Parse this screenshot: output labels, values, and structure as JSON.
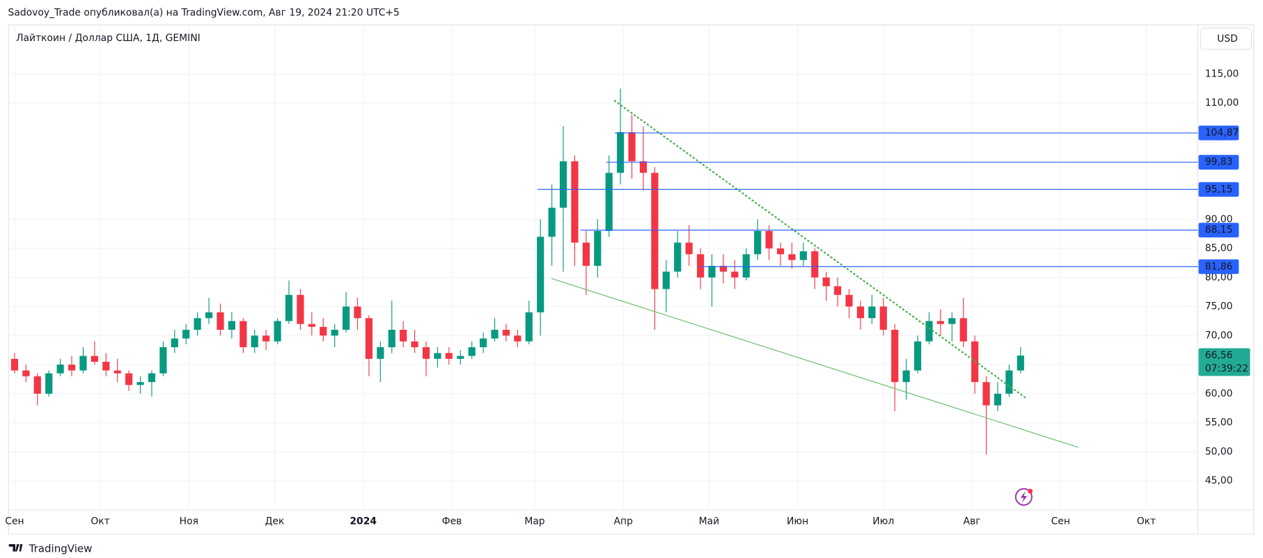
{
  "header": {
    "publisher": "Sadovoy_Trade опубликовал(а) на TradingView.com, Авг 19, 2024 21:20 UTC+5",
    "brand": "TradingView"
  },
  "chart_data": {
    "type": "candlestick",
    "title": "Лайткоин / Доллар США, 1Д, GEMINI",
    "currency": "USD",
    "up_color": "#089981",
    "down_color": "#f23645",
    "grid": true,
    "xlim": [
      "2023-08-30",
      "2024-10-19"
    ],
    "ylim": [
      40,
      123.4
    ],
    "xticks": [
      {
        "value": "2023-09-01",
        "label": "Сен"
      },
      {
        "value": "2023-10-01",
        "label": "Окт"
      },
      {
        "value": "2023-11-01",
        "label": "Ноя"
      },
      {
        "value": "2023-12-01",
        "label": "Дек"
      },
      {
        "value": "2024-01-01",
        "label": "2024"
      },
      {
        "value": "2024-02-01",
        "label": "Фев"
      },
      {
        "value": "2024-03-01",
        "label": "Мар"
      },
      {
        "value": "2024-04-01",
        "label": "Апр"
      },
      {
        "value": "2024-05-01",
        "label": "Май"
      },
      {
        "value": "2024-06-01",
        "label": "Июн"
      },
      {
        "value": "2024-07-01",
        "label": "Июл"
      },
      {
        "value": "2024-08-01",
        "label": "Авг"
      },
      {
        "value": "2024-09-01",
        "label": "Сен"
      },
      {
        "value": "2024-10-01",
        "label": "Окт"
      }
    ],
    "yticks": [
      {
        "value": 45,
        "label": "45,00"
      },
      {
        "value": 50,
        "label": "50,00"
      },
      {
        "value": 55,
        "label": "55,00"
      },
      {
        "value": 60,
        "label": "60,00"
      },
      {
        "value": 65,
        "label": "65,00"
      },
      {
        "value": 70,
        "label": "70,00"
      },
      {
        "value": 75,
        "label": "75,00"
      },
      {
        "value": 80,
        "label": "80,00"
      },
      {
        "value": 85,
        "label": "85,00"
      },
      {
        "value": 90,
        "label": "90,00"
      },
      {
        "value": 110,
        "label": "110,00"
      },
      {
        "value": 115,
        "label": "115,00"
      }
    ],
    "x": [
      "2023-09-01",
      "2023-09-05",
      "2023-09-09",
      "2023-09-13",
      "2023-09-17",
      "2023-09-21",
      "2023-09-25",
      "2023-09-29",
      "2023-10-03",
      "2023-10-07",
      "2023-10-11",
      "2023-10-15",
      "2023-10-19",
      "2023-10-23",
      "2023-10-27",
      "2023-10-31",
      "2023-11-04",
      "2023-11-08",
      "2023-11-12",
      "2023-11-16",
      "2023-11-20",
      "2023-11-24",
      "2023-11-28",
      "2023-12-02",
      "2023-12-06",
      "2023-12-10",
      "2023-12-14",
      "2023-12-18",
      "2023-12-22",
      "2023-12-26",
      "2023-12-30",
      "2024-01-03",
      "2024-01-07",
      "2024-01-11",
      "2024-01-15",
      "2024-01-19",
      "2024-01-23",
      "2024-01-27",
      "2024-01-31",
      "2024-02-04",
      "2024-02-08",
      "2024-02-12",
      "2024-02-16",
      "2024-02-20",
      "2024-02-24",
      "2024-02-28",
      "2024-03-03",
      "2024-03-07",
      "2024-03-11",
      "2024-03-15",
      "2024-03-19",
      "2024-03-23",
      "2024-03-27",
      "2024-03-31",
      "2024-04-04",
      "2024-04-08",
      "2024-04-12",
      "2024-04-16",
      "2024-04-20",
      "2024-04-24",
      "2024-04-28",
      "2024-05-02",
      "2024-05-06",
      "2024-05-10",
      "2024-05-14",
      "2024-05-18",
      "2024-05-22",
      "2024-05-26",
      "2024-05-30",
      "2024-06-03",
      "2024-06-07",
      "2024-06-11",
      "2024-06-15",
      "2024-06-19",
      "2024-06-23",
      "2024-06-27",
      "2024-07-01",
      "2024-07-05",
      "2024-07-09",
      "2024-07-13",
      "2024-07-17",
      "2024-07-21",
      "2024-07-25",
      "2024-07-29",
      "2024-08-02",
      "2024-08-06",
      "2024-08-10",
      "2024-08-14",
      "2024-08-18"
    ],
    "ohlc": [
      [
        66,
        67,
        63.5,
        64
      ],
      [
        64,
        65,
        62,
        63
      ],
      [
        63,
        63.5,
        58,
        60
      ],
      [
        60,
        64,
        59.5,
        63.5
      ],
      [
        63.5,
        66,
        63,
        65
      ],
      [
        65,
        66.5,
        63,
        64
      ],
      [
        64,
        68,
        63.5,
        66.5
      ],
      [
        66.5,
        69,
        65,
        65.5
      ],
      [
        65.5,
        67,
        63,
        64
      ],
      [
        64,
        66,
        62,
        63.5
      ],
      [
        63.5,
        64,
        60.5,
        61.5
      ],
      [
        61.5,
        63,
        60,
        62
      ],
      [
        62,
        64,
        59.5,
        63.5
      ],
      [
        63.5,
        69,
        63,
        68
      ],
      [
        68,
        71,
        67,
        69.5
      ],
      [
        69.5,
        72,
        68.5,
        71
      ],
      [
        71,
        74,
        70,
        73
      ],
      [
        73,
        76.5,
        72,
        74
      ],
      [
        74,
        75.5,
        70,
        71
      ],
      [
        71,
        74,
        69.5,
        72.5
      ],
      [
        72.5,
        73,
        67,
        68
      ],
      [
        68,
        71,
        67,
        70
      ],
      [
        70,
        71,
        67.5,
        69
      ],
      [
        69,
        73,
        68.5,
        72.5
      ],
      [
        72.5,
        79.5,
        72,
        77
      ],
      [
        77,
        78,
        71,
        72
      ],
      [
        72,
        74,
        70,
        71.5
      ],
      [
        71.5,
        73,
        69,
        70
      ],
      [
        70,
        72,
        68,
        71
      ],
      [
        71,
        77.5,
        70.5,
        75
      ],
      [
        75,
        76.5,
        71,
        73
      ],
      [
        73,
        73.5,
        63,
        66
      ],
      [
        66,
        69,
        62,
        68
      ],
      [
        68,
        76,
        67,
        71
      ],
      [
        71,
        72.5,
        68,
        69
      ],
      [
        69,
        71,
        67,
        68
      ],
      [
        68,
        69,
        63,
        66
      ],
      [
        66,
        68,
        64.5,
        67
      ],
      [
        67,
        68,
        65,
        66
      ],
      [
        66,
        67.5,
        65,
        66.5
      ],
      [
        66.5,
        69,
        66,
        68
      ],
      [
        68,
        70.5,
        67,
        69.5
      ],
      [
        69.5,
        73,
        69,
        71
      ],
      [
        71,
        72,
        69,
        70
      ],
      [
        70,
        71,
        68,
        69
      ],
      [
        69,
        76,
        68.5,
        74
      ],
      [
        74,
        90,
        70,
        87
      ],
      [
        87,
        96,
        82,
        92
      ],
      [
        92,
        106,
        81,
        100
      ],
      [
        100,
        101,
        82,
        86
      ],
      [
        86,
        88,
        77,
        82
      ],
      [
        82,
        90,
        80,
        88
      ],
      [
        88,
        101,
        87,
        98
      ],
      [
        98,
        112.5,
        96,
        105
      ],
      [
        105,
        108,
        97,
        100
      ],
      [
        100,
        106,
        95,
        98
      ],
      [
        98,
        99,
        71,
        78
      ],
      [
        78,
        83,
        74,
        81
      ],
      [
        81,
        88,
        80,
        86
      ],
      [
        86,
        89,
        82,
        84
      ],
      [
        84,
        85,
        78,
        80
      ],
      [
        80,
        84,
        75,
        82
      ],
      [
        82,
        84,
        79,
        81
      ],
      [
        81,
        83,
        78,
        80
      ],
      [
        80,
        85,
        79.5,
        84
      ],
      [
        84,
        90,
        83,
        88
      ],
      [
        88,
        89,
        83,
        85
      ],
      [
        85,
        86,
        82,
        84
      ],
      [
        84,
        86,
        81.5,
        83
      ],
      [
        83,
        86,
        82,
        84.5
      ],
      [
        84.5,
        85,
        78,
        80
      ],
      [
        80,
        81,
        76,
        78.5
      ],
      [
        78.5,
        80,
        75,
        77
      ],
      [
        77,
        78,
        73,
        75
      ],
      [
        75,
        76,
        71,
        73
      ],
      [
        73,
        77,
        72,
        75
      ],
      [
        75,
        76.5,
        70,
        71
      ],
      [
        71,
        72,
        57,
        62
      ],
      [
        62,
        66,
        59,
        64
      ],
      [
        64,
        70,
        63.5,
        69
      ],
      [
        69,
        74,
        68.5,
        72.5
      ],
      [
        72.5,
        74.5,
        70,
        72
      ],
      [
        72,
        74,
        69,
        73
      ],
      [
        73,
        76.5,
        68,
        69
      ],
      [
        69,
        70,
        60,
        62
      ],
      [
        62,
        63,
        49.5,
        58
      ],
      [
        58,
        62,
        57,
        60
      ],
      [
        60,
        65,
        59.5,
        64
      ],
      [
        64,
        68,
        63.5,
        66.56
      ]
    ],
    "levels": [
      {
        "value": 104.87,
        "label": "104,87",
        "start": "2024-03-29"
      },
      {
        "value": 99.83,
        "label": "99,83",
        "start": "2024-03-26"
      },
      {
        "value": 95.15,
        "label": "95,15",
        "start": "2024-03-02"
      },
      {
        "value": 88.15,
        "label": "88,15",
        "start": "2024-03-17"
      },
      {
        "value": 81.86,
        "label": "81,86",
        "start": "2024-04-28"
      }
    ],
    "level_color": "#2962ff",
    "trendlines": [
      {
        "x": [
          "2024-03-29",
          "2024-08-20"
        ],
        "y": [
          110.4,
          59.2
        ],
        "color": "#4caf50",
        "style": "dotted"
      },
      {
        "x": [
          "2024-03-07",
          "2024-09-07"
        ],
        "y": [
          79.8,
          50.8
        ],
        "color": "#66bb6a",
        "style": "solid"
      }
    ],
    "last_price": {
      "value": 66.56,
      "label": "66,56",
      "countdown": "07:39:22",
      "color": "#22ab94"
    }
  }
}
